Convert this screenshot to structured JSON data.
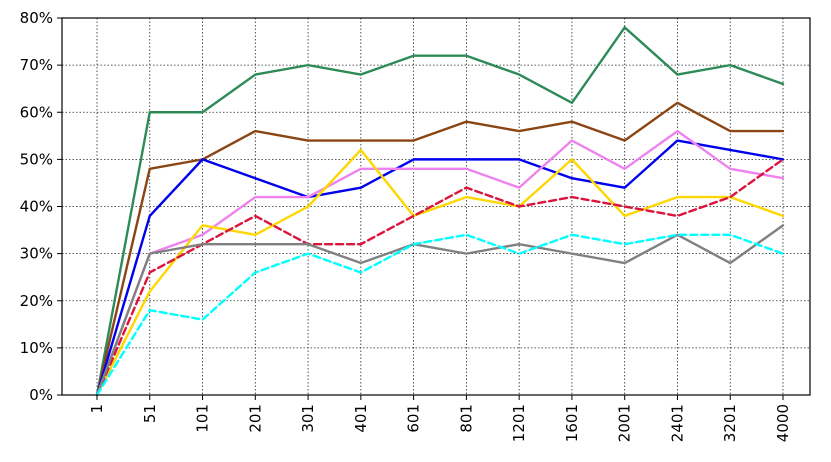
{
  "chart_data": {
    "type": "line",
    "title": "",
    "xlabel": "",
    "ylabel": "",
    "categories": [
      "1",
      "51",
      "101",
      "201",
      "301",
      "401",
      "601",
      "801",
      "1201",
      "1601",
      "2001",
      "2401",
      "3201",
      "4000"
    ],
    "ylim": [
      0,
      80
    ],
    "yticks": [
      0,
      10,
      20,
      30,
      40,
      50,
      60,
      70,
      80
    ],
    "ytick_labels": [
      "0%",
      "10%",
      "20%",
      "30%",
      "40%",
      "50%",
      "60%",
      "70%",
      "80%"
    ],
    "grid": true,
    "legend": "none",
    "series": [
      {
        "color": "#2e8b57",
        "dash": "solid",
        "values": [
          0,
          60,
          60,
          68,
          70,
          68,
          72,
          72,
          68,
          62,
          78,
          68,
          70,
          66
        ]
      },
      {
        "color": "#8b4513",
        "dash": "solid",
        "values": [
          0,
          48,
          50,
          56,
          54,
          54,
          54,
          58,
          56,
          58,
          54,
          62,
          56,
          56
        ]
      },
      {
        "color": "#0000ee",
        "dash": "solid",
        "values": [
          0,
          38,
          50,
          46,
          42,
          44,
          50,
          50,
          50,
          46,
          44,
          54,
          52,
          50
        ]
      },
      {
        "color": "#ee82ee",
        "dash": "solid",
        "values": [
          0,
          30,
          34,
          42,
          42,
          48,
          48,
          48,
          44,
          54,
          48,
          56,
          48,
          46
        ]
      },
      {
        "color": "#ffd700",
        "dash": "solid",
        "values": [
          0,
          22,
          36,
          34,
          40,
          52,
          38,
          42,
          40,
          50,
          38,
          42,
          42,
          38
        ]
      },
      {
        "color": "#dc143c",
        "dash": "dashed",
        "values": [
          0,
          26,
          32,
          38,
          32,
          32,
          38,
          44,
          40,
          42,
          40,
          38,
          42,
          50
        ]
      },
      {
        "color": "#808080",
        "dash": "solid",
        "values": [
          0,
          30,
          32,
          32,
          32,
          28,
          32,
          30,
          32,
          30,
          28,
          34,
          28,
          36
        ]
      },
      {
        "color": "#00ffff",
        "dash": "dashed",
        "values": [
          0,
          18,
          16,
          26,
          30,
          26,
          32,
          34,
          30,
          34,
          32,
          34,
          34,
          30
        ]
      }
    ]
  }
}
